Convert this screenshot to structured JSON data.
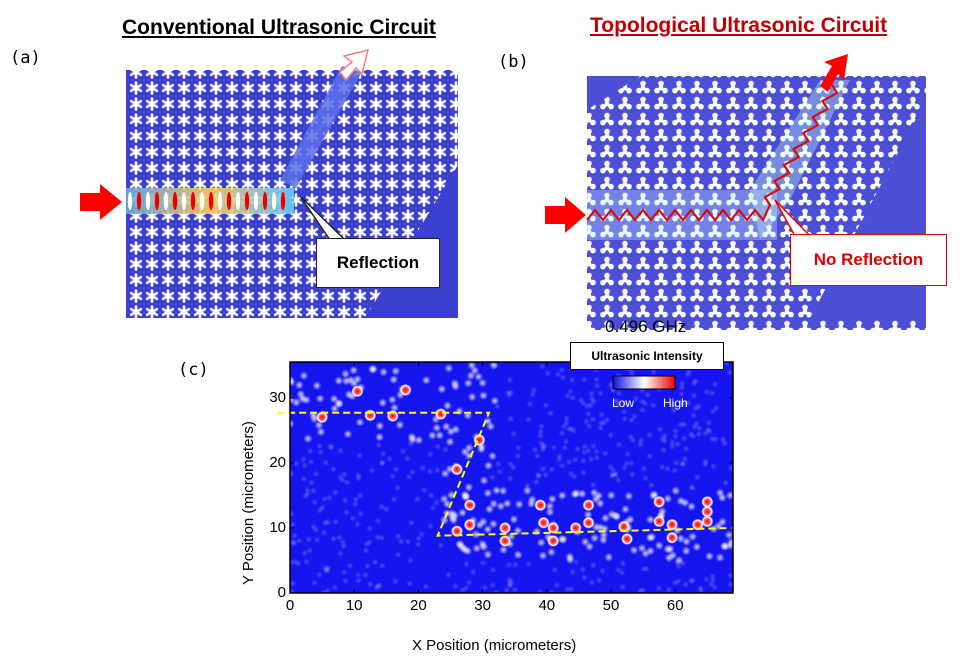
{
  "panel_a": {
    "label": "(a)",
    "title": "Conventional Ultrasonic Circuit",
    "callout": "Reflection"
  },
  "panel_b": {
    "label": "(b)",
    "title": "Topological Ultrasonic Circuit",
    "callout": "No Reflection",
    "frequency": "0.496 GHz"
  },
  "colors": {
    "lattice_blue": "#3c40d0",
    "field_blue": "#1515f0",
    "arrow_red": "#ff0000",
    "title_red": "#c00000",
    "guide_yellow": "#ffff00"
  },
  "chart_data": {
    "type": "heatmap",
    "label": "(c)",
    "xlabel": "X Position (micrometers)",
    "ylabel": "Y Position (micrometers)",
    "xlim": [
      0,
      69
    ],
    "ylim": [
      0,
      35.5
    ],
    "xticks": [
      "0",
      "10",
      "20",
      "30",
      "40",
      "50",
      "60"
    ],
    "yticks": [
      "0",
      "10",
      "20",
      "30"
    ],
    "legend": {
      "title": "Ultrasonic Intensity",
      "low": "Low",
      "high": "High",
      "placement": "top-right"
    },
    "guide_path": [
      [
        -2,
        27.7
      ],
      [
        31,
        27.7
      ],
      [
        23,
        8.8
      ],
      [
        69,
        10
      ]
    ],
    "hotspots": [
      [
        5,
        27
      ],
      [
        10.5,
        31
      ],
      [
        12.5,
        27.3
      ],
      [
        16,
        27.2
      ],
      [
        18,
        31.2
      ],
      [
        23.5,
        27.5
      ],
      [
        29.5,
        23.5
      ],
      [
        26,
        19
      ],
      [
        28,
        13.5
      ],
      [
        26,
        9.5
      ],
      [
        28,
        10.5
      ],
      [
        33.5,
        10
      ],
      [
        33.5,
        8
      ],
      [
        39,
        13.5
      ],
      [
        39.5,
        10.8
      ],
      [
        41,
        10
      ],
      [
        41,
        8
      ],
      [
        44.5,
        10
      ],
      [
        46.5,
        13.5
      ],
      [
        46.5,
        10.8
      ],
      [
        52,
        10.2
      ],
      [
        52.5,
        8.3
      ],
      [
        57.5,
        14
      ],
      [
        57.5,
        11
      ],
      [
        59.5,
        10.5
      ],
      [
        59.5,
        8.5
      ],
      [
        63.5,
        10.5
      ],
      [
        65,
        14
      ],
      [
        65,
        12.5
      ],
      [
        65,
        11
      ]
    ]
  }
}
